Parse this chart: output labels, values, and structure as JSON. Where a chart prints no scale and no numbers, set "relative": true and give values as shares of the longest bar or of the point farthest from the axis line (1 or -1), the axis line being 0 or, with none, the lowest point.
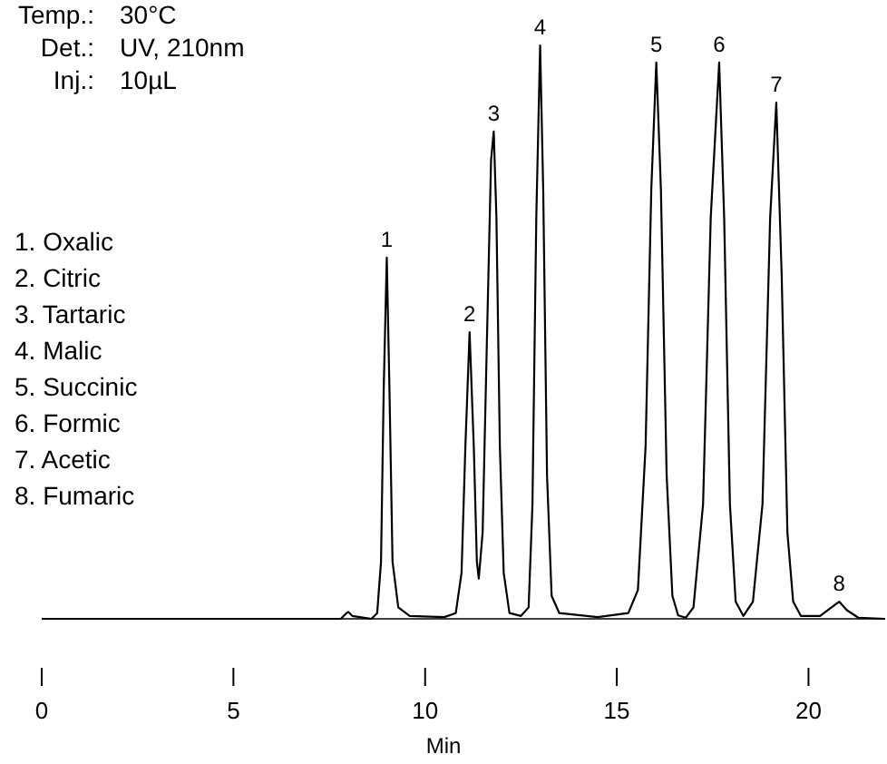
{
  "chart_data": {
    "type": "line",
    "relative": true,
    "xlabel": "Min",
    "xlim": [
      0,
      22
    ],
    "xticks": [
      0,
      5,
      10,
      15,
      20
    ],
    "x": [
      0,
      7.8,
      7.95,
      8.0,
      8.1,
      8.3,
      8.6,
      8.75,
      8.85,
      8.92,
      9.0,
      9.07,
      9.15,
      9.3,
      9.6,
      10.5,
      10.8,
      10.95,
      11.05,
      11.16,
      11.27,
      11.35,
      11.4,
      11.5,
      11.6,
      11.72,
      11.79,
      11.86,
      11.95,
      12.05,
      12.2,
      12.5,
      12.7,
      12.8,
      12.9,
      13.0,
      13.08,
      13.18,
      13.3,
      13.5,
      14.5,
      15.3,
      15.55,
      15.75,
      15.9,
      16.03,
      16.15,
      16.3,
      16.45,
      16.6,
      16.8,
      17.0,
      17.25,
      17.45,
      17.67,
      17.8,
      17.95,
      18.1,
      18.3,
      18.55,
      18.8,
      19.0,
      19.16,
      19.3,
      19.45,
      19.6,
      19.8,
      20.3,
      20.6,
      20.8,
      21.0,
      21.3,
      22
    ],
    "series": [
      {
        "color": "#000000",
        "values": [
          0,
          0,
          0.01,
          0.012,
          0.005,
          0.003,
          0,
          0.01,
          0.1,
          0.4,
          0.63,
          0.4,
          0.1,
          0.02,
          0.005,
          0.003,
          0.01,
          0.08,
          0.3,
          0.5,
          0.3,
          0.1,
          0.07,
          0.15,
          0.45,
          0.8,
          0.85,
          0.7,
          0.3,
          0.08,
          0.01,
          0.005,
          0.02,
          0.2,
          0.7,
          1.0,
          0.75,
          0.25,
          0.04,
          0.01,
          0.003,
          0.01,
          0.05,
          0.3,
          0.75,
          0.97,
          0.75,
          0.25,
          0.04,
          0.006,
          0.002,
          0.02,
          0.2,
          0.7,
          0.97,
          0.7,
          0.2,
          0.03,
          0.005,
          0.03,
          0.2,
          0.7,
          0.9,
          0.6,
          0.15,
          0.03,
          0.005,
          0.005,
          0.02,
          0.03,
          0.015,
          0.002,
          0
        ]
      }
    ],
    "annotations": [
      "Temp.: 30°C",
      "Det.: UV, 210nm",
      "Inj.: 10µL",
      "1. Oxalic",
      "2. Citric",
      "3. Tartaric",
      "4. Malic",
      "5. Succinic",
      "6. Formic",
      "7. Acetic",
      "8. Fumaric",
      {
        "text": "1",
        "x": 9.0,
        "y": 0.63
      },
      {
        "text": "2",
        "x": 11.16,
        "y": 0.5
      },
      {
        "text": "3",
        "x": 11.79,
        "y": 0.85
      },
      {
        "text": "4",
        "x": 13.0,
        "y": 1.0
      },
      {
        "text": "5",
        "x": 16.03,
        "y": 0.97
      },
      {
        "text": "6",
        "x": 17.67,
        "y": 0.97
      },
      {
        "text": "7",
        "x": 19.16,
        "y": 0.9
      },
      {
        "text": "8",
        "x": 20.8,
        "y": 0.03
      }
    ]
  }
}
